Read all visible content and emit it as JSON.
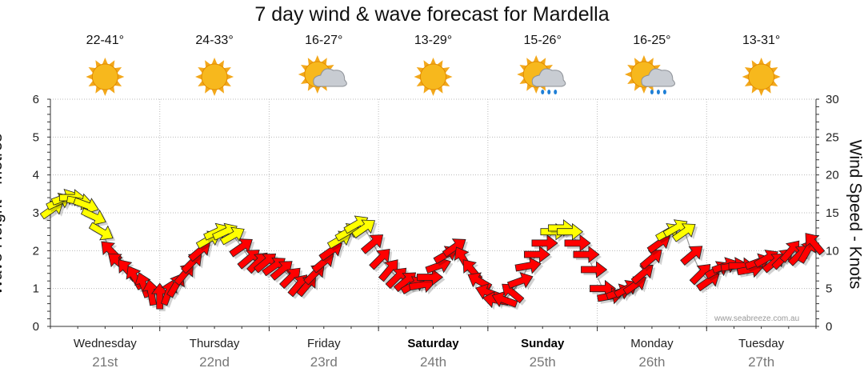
{
  "chart_data": {
    "type": "line",
    "title": "7 day wind & wave forecast for Mardella",
    "y_left_label": "Wave Height - Metres",
    "y_right_label": "Wind Speed - Knots",
    "y_left_range": [
      0,
      6
    ],
    "y_left_ticks": [
      "0",
      "1",
      "2",
      "3",
      "4",
      "5",
      "6"
    ],
    "y_right_range": [
      0,
      30
    ],
    "y_right_ticks": [
      "0",
      "5",
      "10",
      "15",
      "20",
      "25",
      "30"
    ],
    "grid": true,
    "days": [
      {
        "dow": "Wednesday",
        "date": "21st",
        "temp": "22-41°",
        "weather": "sunny-icon",
        "bold": false
      },
      {
        "dow": "Thursday",
        "date": "22nd",
        "temp": "24-33°",
        "weather": "sunny-icon",
        "bold": false
      },
      {
        "dow": "Friday",
        "date": "23rd",
        "temp": "16-27°",
        "weather": "partly-cloudy-icon",
        "bold": false
      },
      {
        "dow": "Saturday",
        "date": "24th",
        "temp": "13-29°",
        "weather": "sunny-icon",
        "bold": true
      },
      {
        "dow": "Sunday",
        "date": "25th",
        "temp": "15-26°",
        "weather": "sun-cloud-rain-icon",
        "bold": true
      },
      {
        "dow": "Monday",
        "date": "26th",
        "temp": "16-25°",
        "weather": "cloud-rain-icon",
        "bold": false
      },
      {
        "dow": "Tuesday",
        "date": "27th",
        "temp": "13-31°",
        "weather": "sunny-icon",
        "bold": false
      }
    ],
    "x_range_days": [
      0,
      7
    ],
    "wind_series": [
      {
        "t": 0.02,
        "knots": 15.5,
        "dir_deg": 35,
        "level": "strong"
      },
      {
        "t": 0.08,
        "knots": 16.5,
        "dir_deg": 25,
        "level": "strong"
      },
      {
        "t": 0.13,
        "knots": 17.0,
        "dir_deg": 20,
        "level": "strong"
      },
      {
        "t": 0.2,
        "knots": 17.0,
        "dir_deg": 0,
        "level": "strong"
      },
      {
        "t": 0.27,
        "knots": 16.5,
        "dir_deg": -10,
        "level": "strong"
      },
      {
        "t": 0.33,
        "knots": 16.0,
        "dir_deg": -20,
        "level": "strong"
      },
      {
        "t": 0.4,
        "knots": 14.5,
        "dir_deg": -25,
        "level": "strong"
      },
      {
        "t": 0.47,
        "knots": 12.5,
        "dir_deg": -30,
        "level": "strong"
      },
      {
        "t": 0.55,
        "knots": 10.0,
        "dir_deg": 135,
        "level": "normal"
      },
      {
        "t": 0.62,
        "knots": 8.5,
        "dir_deg": 140,
        "level": "normal"
      },
      {
        "t": 0.7,
        "knots": 7.5,
        "dir_deg": 130,
        "level": "normal"
      },
      {
        "t": 0.77,
        "knots": 6.5,
        "dir_deg": 120,
        "level": "normal"
      },
      {
        "t": 0.85,
        "knots": 5.5,
        "dir_deg": 110,
        "level": "normal"
      },
      {
        "t": 0.92,
        "knots": 4.5,
        "dir_deg": 100,
        "level": "normal"
      },
      {
        "t": 1.0,
        "knots": 4.0,
        "dir_deg": 90,
        "level": "normal"
      },
      {
        "t": 1.08,
        "knots": 4.5,
        "dir_deg": 70,
        "level": "normal"
      },
      {
        "t": 1.15,
        "knots": 5.5,
        "dir_deg": 60,
        "level": "normal"
      },
      {
        "t": 1.23,
        "knots": 7.0,
        "dir_deg": 50,
        "level": "normal"
      },
      {
        "t": 1.3,
        "knots": 8.5,
        "dir_deg": 45,
        "level": "normal"
      },
      {
        "t": 1.37,
        "knots": 10.0,
        "dir_deg": 40,
        "level": "normal"
      },
      {
        "t": 1.45,
        "knots": 11.5,
        "dir_deg": 30,
        "level": "strong"
      },
      {
        "t": 1.52,
        "knots": 12.5,
        "dir_deg": 25,
        "level": "strong"
      },
      {
        "t": 1.6,
        "knots": 12.5,
        "dir_deg": 25,
        "level": "strong"
      },
      {
        "t": 1.67,
        "knots": 12.0,
        "dir_deg": 30,
        "level": "strong"
      },
      {
        "t": 1.75,
        "knots": 10.5,
        "dir_deg": 35,
        "level": "normal"
      },
      {
        "t": 1.82,
        "knots": 9.0,
        "dir_deg": 40,
        "level": "normal"
      },
      {
        "t": 1.9,
        "knots": 8.5,
        "dir_deg": 45,
        "level": "normal"
      },
      {
        "t": 1.97,
        "knots": 8.5,
        "dir_deg": 40,
        "level": "normal"
      },
      {
        "t": 2.05,
        "knots": 8.0,
        "dir_deg": 35,
        "level": "normal"
      },
      {
        "t": 2.12,
        "knots": 7.5,
        "dir_deg": 40,
        "level": "normal"
      },
      {
        "t": 2.2,
        "knots": 6.5,
        "dir_deg": 45,
        "level": "normal"
      },
      {
        "t": 2.27,
        "knots": 5.5,
        "dir_deg": 50,
        "level": "normal"
      },
      {
        "t": 2.35,
        "knots": 5.5,
        "dir_deg": 50,
        "level": "normal"
      },
      {
        "t": 2.42,
        "knots": 7.0,
        "dir_deg": 45,
        "level": "normal"
      },
      {
        "t": 2.5,
        "knots": 8.5,
        "dir_deg": 40,
        "level": "normal"
      },
      {
        "t": 2.57,
        "knots": 10.0,
        "dir_deg": 35,
        "level": "normal"
      },
      {
        "t": 2.65,
        "knots": 11.5,
        "dir_deg": 30,
        "level": "strong"
      },
      {
        "t": 2.72,
        "knots": 12.5,
        "dir_deg": 30,
        "level": "strong"
      },
      {
        "t": 2.8,
        "knots": 13.5,
        "dir_deg": 30,
        "level": "strong"
      },
      {
        "t": 2.87,
        "knots": 13.0,
        "dir_deg": 35,
        "level": "strong"
      },
      {
        "t": 2.95,
        "knots": 11.0,
        "dir_deg": 40,
        "level": "normal"
      },
      {
        "t": 3.02,
        "knots": 9.0,
        "dir_deg": 45,
        "level": "normal"
      },
      {
        "t": 3.1,
        "knots": 7.5,
        "dir_deg": 50,
        "level": "normal"
      },
      {
        "t": 3.17,
        "knots": 6.5,
        "dir_deg": 45,
        "level": "normal"
      },
      {
        "t": 3.25,
        "knots": 6.0,
        "dir_deg": 40,
        "level": "normal"
      },
      {
        "t": 3.32,
        "knots": 5.5,
        "dir_deg": 30,
        "level": "normal"
      },
      {
        "t": 3.4,
        "knots": 5.5,
        "dir_deg": 10,
        "level": "normal"
      },
      {
        "t": 3.47,
        "knots": 6.5,
        "dir_deg": 0,
        "level": "normal"
      },
      {
        "t": 3.55,
        "knots": 8.0,
        "dir_deg": 20,
        "level": "normal"
      },
      {
        "t": 3.62,
        "knots": 9.5,
        "dir_deg": 30,
        "level": "normal"
      },
      {
        "t": 3.7,
        "knots": 10.5,
        "dir_deg": 35,
        "level": "normal"
      },
      {
        "t": 3.77,
        "knots": 9.0,
        "dir_deg": 120,
        "level": "normal"
      },
      {
        "t": 3.85,
        "knots": 7.5,
        "dir_deg": 130,
        "level": "normal"
      },
      {
        "t": 3.92,
        "knots": 6.0,
        "dir_deg": 150,
        "level": "normal"
      },
      {
        "t": 4.0,
        "knots": 4.5,
        "dir_deg": 160,
        "level": "normal"
      },
      {
        "t": 4.07,
        "knots": 3.5,
        "dir_deg": 170,
        "level": "normal"
      },
      {
        "t": 4.15,
        "knots": 3.5,
        "dir_deg": 160,
        "level": "normal"
      },
      {
        "t": 4.22,
        "knots": 4.5,
        "dir_deg": 140,
        "level": "normal"
      },
      {
        "t": 4.3,
        "knots": 6.0,
        "dir_deg": 20,
        "level": "normal"
      },
      {
        "t": 4.37,
        "knots": 8.0,
        "dir_deg": 10,
        "level": "normal"
      },
      {
        "t": 4.45,
        "knots": 9.5,
        "dir_deg": 0,
        "level": "normal"
      },
      {
        "t": 4.52,
        "knots": 11.0,
        "dir_deg": 0,
        "level": "normal"
      },
      {
        "t": 4.6,
        "knots": 12.5,
        "dir_deg": 0,
        "level": "strong"
      },
      {
        "t": 4.67,
        "knots": 13.0,
        "dir_deg": 0,
        "level": "strong"
      },
      {
        "t": 4.75,
        "knots": 12.5,
        "dir_deg": 0,
        "level": "strong"
      },
      {
        "t": 4.82,
        "knots": 11.0,
        "dir_deg": 0,
        "level": "normal"
      },
      {
        "t": 4.9,
        "knots": 9.5,
        "dir_deg": 0,
        "level": "normal"
      },
      {
        "t": 4.97,
        "knots": 7.5,
        "dir_deg": 0,
        "level": "normal"
      },
      {
        "t": 5.05,
        "knots": 5.0,
        "dir_deg": 0,
        "level": "normal"
      },
      {
        "t": 5.12,
        "knots": 4.0,
        "dir_deg": 10,
        "level": "normal"
      },
      {
        "t": 5.2,
        "knots": 4.5,
        "dir_deg": 20,
        "level": "normal"
      },
      {
        "t": 5.27,
        "knots": 5.0,
        "dir_deg": 30,
        "level": "normal"
      },
      {
        "t": 5.35,
        "knots": 5.5,
        "dir_deg": 35,
        "level": "normal"
      },
      {
        "t": 5.42,
        "knots": 7.0,
        "dir_deg": 40,
        "level": "normal"
      },
      {
        "t": 5.5,
        "knots": 9.0,
        "dir_deg": 40,
        "level": "normal"
      },
      {
        "t": 5.57,
        "knots": 11.0,
        "dir_deg": 35,
        "level": "normal"
      },
      {
        "t": 5.65,
        "knots": 12.5,
        "dir_deg": 30,
        "level": "strong"
      },
      {
        "t": 5.72,
        "knots": 13.0,
        "dir_deg": 30,
        "level": "strong"
      },
      {
        "t": 5.8,
        "knots": 12.5,
        "dir_deg": 35,
        "level": "strong"
      },
      {
        "t": 5.87,
        "knots": 9.5,
        "dir_deg": 40,
        "level": "normal"
      },
      {
        "t": 5.95,
        "knots": 7.0,
        "dir_deg": 45,
        "level": "normal"
      },
      {
        "t": 6.02,
        "knots": 6.0,
        "dir_deg": 35,
        "level": "normal"
      },
      {
        "t": 6.1,
        "knots": 7.5,
        "dir_deg": 30,
        "level": "normal"
      },
      {
        "t": 6.17,
        "knots": 8.0,
        "dir_deg": 20,
        "level": "normal"
      },
      {
        "t": 6.25,
        "knots": 8.0,
        "dir_deg": 10,
        "level": "normal"
      },
      {
        "t": 6.32,
        "knots": 8.0,
        "dir_deg": 0,
        "level": "normal"
      },
      {
        "t": 6.4,
        "knots": 7.5,
        "dir_deg": 10,
        "level": "normal"
      },
      {
        "t": 6.47,
        "knots": 8.5,
        "dir_deg": 20,
        "level": "normal"
      },
      {
        "t": 6.55,
        "knots": 9.0,
        "dir_deg": 30,
        "level": "normal"
      },
      {
        "t": 6.62,
        "knots": 8.5,
        "dir_deg": 40,
        "level": "normal"
      },
      {
        "t": 6.7,
        "knots": 9.0,
        "dir_deg": 45,
        "level": "normal"
      },
      {
        "t": 6.77,
        "knots": 10.0,
        "dir_deg": 50,
        "level": "normal"
      },
      {
        "t": 6.85,
        "knots": 9.5,
        "dir_deg": 45,
        "level": "normal"
      },
      {
        "t": 6.92,
        "knots": 10.0,
        "dir_deg": 60,
        "level": "normal"
      },
      {
        "t": 6.98,
        "knots": 11.0,
        "dir_deg": 130,
        "level": "normal"
      }
    ],
    "colors": {
      "normal": "#ff0000",
      "strong": "#ffff00",
      "grid": "#bbbbbb",
      "axis": "#333333",
      "line": "#999999"
    }
  },
  "watermark": "www.seabreeze.com.au"
}
